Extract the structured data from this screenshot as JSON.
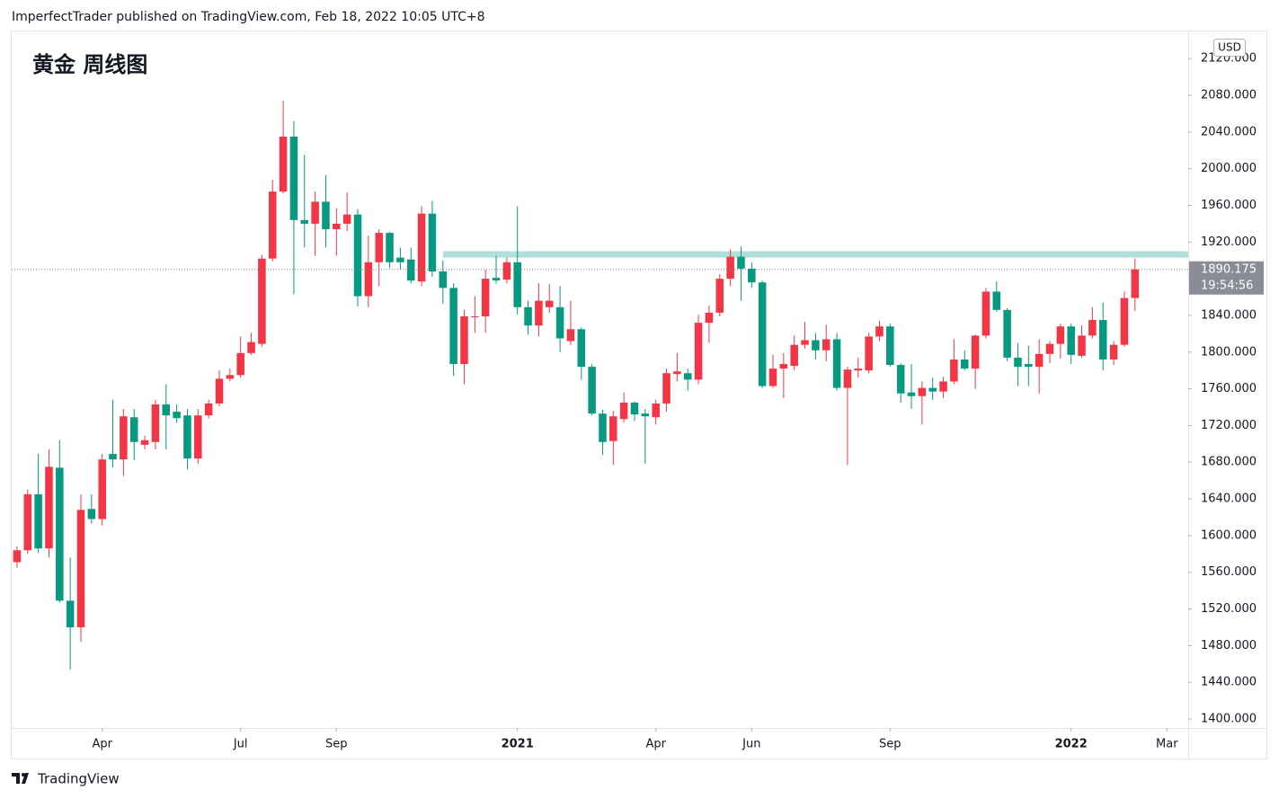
{
  "header": "ImperfectTrader published on TradingView.com, Feb 18, 2022 10:05 UTC+8",
  "footer": "TradingView",
  "chart_data": {
    "type": "candlestick",
    "title": "黄金 周线图",
    "currency": "USD",
    "up_color": "#f23645",
    "down_color": "#089981",
    "open": [
      1571,
      1584,
      1645,
      1586,
      1674,
      1529,
      1500,
      1629,
      1618,
      1689,
      1683,
      1729,
      1699,
      1702,
      1743,
      1735,
      1731,
      1684,
      1731,
      1744,
      1771,
      1775,
      1799,
      1809,
      1902,
      1975,
      2035,
      1944,
      1940,
      1964,
      1934,
      1940,
      1950,
      1861,
      1898,
      1930,
      1903,
      1901,
      1877,
      1951,
      1888,
      1870,
      1787,
      1838,
      1839,
      1881,
      1879,
      1898,
      1849,
      1829,
      1849,
      1849,
      1812,
      1825,
      1784,
      1733,
      1703,
      1727,
      1745,
      1733,
      1729,
      1744,
      1776,
      1777,
      1770,
      1832,
      1843,
      1880,
      1904,
      1891,
      1876,
      1763,
      1782,
      1785,
      1808,
      1813,
      1802,
      1814,
      1761,
      1780,
      1780,
      1817,
      1828,
      1786,
      1756,
      1752,
      1761,
      1757,
      1768,
      1792,
      1782,
      1818,
      1866,
      1846,
      1794,
      1787,
      1784,
      1798,
      1809,
      1828,
      1796,
      1818,
      1835,
      1792,
      1808,
      1859
    ],
    "high": [
      1588,
      1650,
      1689,
      1694,
      1704,
      1576,
      1645,
      1645,
      1689,
      1748,
      1738,
      1738,
      1709,
      1748,
      1765,
      1743,
      1738,
      1738,
      1748,
      1780,
      1782,
      1817,
      1821,
      1906,
      1988,
      2074,
      2052,
      2015,
      1975,
      1993,
      1957,
      1974,
      1956,
      1927,
      1934,
      1931,
      1914,
      1914,
      1959,
      1965,
      1900,
      1875,
      1846,
      1861,
      1890,
      1905,
      1903,
      1959,
      1856,
      1875,
      1874,
      1872,
      1856,
      1827,
      1787,
      1737,
      1736,
      1756,
      1746,
      1738,
      1748,
      1782,
      1799,
      1782,
      1841,
      1851,
      1885,
      1912,
      1915,
      1898,
      1878,
      1797,
      1799,
      1818,
      1833,
      1821,
      1830,
      1821,
      1784,
      1794,
      1821,
      1834,
      1831,
      1788,
      1787,
      1768,
      1772,
      1773,
      1814,
      1802,
      1819,
      1870,
      1877,
      1848,
      1810,
      1807,
      1814,
      1812,
      1831,
      1831,
      1829,
      1849,
      1854,
      1812,
      1866,
      1902
    ],
    "low": [
      1565,
      1580,
      1581,
      1576,
      1527,
      1454,
      1484,
      1613,
      1611,
      1674,
      1665,
      1682,
      1694,
      1694,
      1694,
      1723,
      1672,
      1678,
      1728,
      1741,
      1768,
      1772,
      1797,
      1806,
      1899,
      1973,
      1863,
      1914,
      1905,
      1914,
      1905,
      1932,
      1850,
      1849,
      1872,
      1892,
      1890,
      1875,
      1872,
      1882,
      1853,
      1774,
      1765,
      1821,
      1821,
      1875,
      1875,
      1841,
      1819,
      1817,
      1843,
      1800,
      1808,
      1770,
      1731,
      1688,
      1677,
      1723,
      1725,
      1678,
      1721,
      1735,
      1768,
      1758,
      1765,
      1810,
      1839,
      1872,
      1856,
      1870,
      1761,
      1761,
      1750,
      1780,
      1804,
      1792,
      1790,
      1758,
      1677,
      1772,
      1777,
      1812,
      1784,
      1745,
      1738,
      1721,
      1748,
      1750,
      1765,
      1780,
      1760,
      1815,
      1844,
      1790,
      1763,
      1763,
      1755,
      1788,
      1793,
      1787,
      1794,
      1815,
      1780,
      1786,
      1806,
      1845
    ],
    "close": [
      1584,
      1645,
      1586,
      1675,
      1529,
      1500,
      1628,
      1618,
      1683,
      1683,
      1730,
      1702,
      1704,
      1743,
      1731,
      1728,
      1684,
      1731,
      1744,
      1771,
      1775,
      1799,
      1811,
      1902,
      1975,
      2035,
      1944,
      1940,
      1964,
      1934,
      1940,
      1950,
      1861,
      1898,
      1930,
      1898,
      1898,
      1878,
      1951,
      1888,
      1870,
      1787,
      1839,
      1839,
      1880,
      1878,
      1898,
      1849,
      1829,
      1856,
      1856,
      1815,
      1825,
      1784,
      1733,
      1702,
      1730,
      1745,
      1732,
      1730,
      1744,
      1777,
      1779,
      1770,
      1832,
      1843,
      1880,
      1904,
      1891,
      1876,
      1763,
      1782,
      1787,
      1808,
      1813,
      1802,
      1814,
      1761,
      1781,
      1782,
      1817,
      1828,
      1786,
      1755,
      1752,
      1761,
      1757,
      1768,
      1792,
      1782,
      1818,
      1866,
      1846,
      1794,
      1784,
      1784,
      1798,
      1809,
      1828,
      1797,
      1818,
      1835,
      1792,
      1808,
      1859,
      1890.175
    ],
    "last_price": {
      "value": 1890.175,
      "label": "1890.175"
    },
    "countdown": "19:54:56",
    "zone": {
      "from": 1903,
      "to": 1910,
      "start": 40,
      "color": "#b2dfdb"
    },
    "xlim": [
      -0.5,
      110
    ],
    "xticks": [
      {
        "value": 8,
        "label": "Apr"
      },
      {
        "value": 21,
        "label": "Jul"
      },
      {
        "value": 30,
        "label": "Sep"
      },
      {
        "value": 47,
        "label": "2021"
      },
      {
        "value": 60,
        "label": "Apr"
      },
      {
        "value": 69,
        "label": "Jun"
      },
      {
        "value": 82,
        "label": "Sep"
      },
      {
        "value": 99,
        "label": "2022"
      },
      {
        "value": 108,
        "label": "Mar"
      }
    ],
    "ylim": [
      1390.2,
      2149.6
    ],
    "yticks": [
      {
        "value": 1400,
        "label": "1400.000"
      },
      {
        "value": 1440,
        "label": "1440.000"
      },
      {
        "value": 1480,
        "label": "1480.000"
      },
      {
        "value": 1520,
        "label": "1520.000"
      },
      {
        "value": 1560,
        "label": "1560.000"
      },
      {
        "value": 1600,
        "label": "1600.000"
      },
      {
        "value": 1640,
        "label": "1640.000"
      },
      {
        "value": 1680,
        "label": "1680.000"
      },
      {
        "value": 1720,
        "label": "1720.000"
      },
      {
        "value": 1760,
        "label": "1760.000"
      },
      {
        "value": 1800,
        "label": "1800.000"
      },
      {
        "value": 1840,
        "label": "1840.000"
      },
      {
        "value": 1880,
        "label": "1880.000"
      },
      {
        "value": 1920,
        "label": "1920.000"
      },
      {
        "value": 1960,
        "label": "1960.000"
      },
      {
        "value": 2000,
        "label": "2000.000"
      },
      {
        "value": 2040,
        "label": "2040.000"
      },
      {
        "value": 2080,
        "label": "2080.000"
      },
      {
        "value": 2120,
        "label": "2120.000"
      }
    ],
    "grid": false
  }
}
